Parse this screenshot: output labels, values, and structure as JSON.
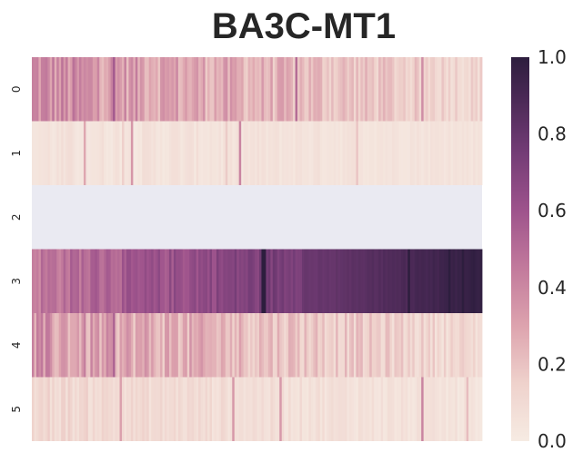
{
  "chart_data": {
    "type": "heatmap",
    "title": "BA3C-MT1",
    "rows": [
      "0",
      "1",
      "2",
      "3",
      "4",
      "5"
    ],
    "n_columns": 200,
    "xlabel": "",
    "ylabel": "",
    "value_range": [
      0.0,
      1.0
    ],
    "colorbar_ticks": [
      "0.0",
      "0.2",
      "0.4",
      "0.6",
      "0.8",
      "1.0"
    ],
    "missing_rows": [
      "2"
    ],
    "row_profiles": [
      {
        "row": "0",
        "mean_start": 0.38,
        "mean_end": 0.12,
        "spread": 0.14
      },
      {
        "row": "1",
        "mean_start": 0.05,
        "mean_end": 0.05,
        "spread": 0.04
      },
      {
        "row": "2",
        "mean_start": null,
        "mean_end": null,
        "spread": null
      },
      {
        "row": "3",
        "mean_start": 0.45,
        "mean_end": 0.98,
        "spread": 0.08
      },
      {
        "row": "4",
        "mean_start": 0.33,
        "mean_end": 0.1,
        "spread": 0.14
      },
      {
        "row": "5",
        "mean_start": 0.12,
        "mean_end": 0.04,
        "spread": 0.06
      }
    ],
    "colors": {
      "low": "#f6ebe3",
      "mid": "#c7809b",
      "high": "#2d1e3e",
      "missing": "#eaeaf2"
    }
  }
}
